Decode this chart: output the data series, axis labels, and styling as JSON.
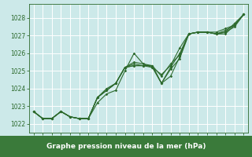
{
  "title": "Graphe pression niveau de la mer (hPa)",
  "bg_color": "#cce9e9",
  "grid_color": "#ffffff",
  "line_color": "#2d6a2d",
  "xlabel_bg": "#3a7a3a",
  "xlabel_fg": "#ffffff",
  "xlim": [
    -0.5,
    23.5
  ],
  "ylim": [
    1021.5,
    1028.8
  ],
  "yticks": [
    1022,
    1023,
    1024,
    1025,
    1026,
    1027,
    1028
  ],
  "xticks": [
    0,
    1,
    2,
    3,
    4,
    5,
    6,
    7,
    8,
    9,
    10,
    11,
    12,
    13,
    14,
    15,
    16,
    17,
    18,
    19,
    20,
    21,
    22,
    23
  ],
  "series": [
    [
      1022.7,
      1022.3,
      1022.3,
      1022.7,
      1022.4,
      1022.3,
      1022.3,
      1023.2,
      1023.7,
      1023.9,
      1025.0,
      1026.0,
      1025.4,
      1025.2,
      1024.3,
      1024.7,
      1025.8,
      1027.1,
      1027.2,
      1027.2,
      1027.1,
      1027.1,
      1027.6,
      1028.2
    ],
    [
      1022.7,
      1022.3,
      1022.3,
      1022.7,
      1022.4,
      1022.3,
      1022.3,
      1023.5,
      1024.0,
      1024.3,
      1025.2,
      1025.5,
      1025.4,
      1025.3,
      1024.7,
      1025.4,
      1025.9,
      1027.1,
      1027.2,
      1027.2,
      1027.1,
      1027.2,
      1027.5,
      1028.2
    ],
    [
      1022.7,
      1022.3,
      1022.3,
      1022.7,
      1022.4,
      1022.3,
      1022.3,
      1023.5,
      1023.9,
      1024.3,
      1025.2,
      1025.4,
      1025.3,
      1025.3,
      1024.3,
      1025.1,
      1025.7,
      1027.1,
      1027.2,
      1027.2,
      1027.1,
      1027.3,
      1027.6,
      1028.2
    ],
    [
      1022.7,
      1022.3,
      1022.3,
      1022.7,
      1022.4,
      1022.3,
      1022.3,
      1023.5,
      1023.9,
      1024.3,
      1025.2,
      1025.3,
      1025.3,
      1025.2,
      1024.8,
      1025.3,
      1026.3,
      1027.1,
      1027.2,
      1027.2,
      1027.2,
      1027.4,
      1027.6,
      1028.2
    ],
    [
      1022.7,
      1022.3,
      1022.3,
      1022.7,
      1022.4,
      1022.3,
      1022.3,
      1023.5,
      1023.9,
      1024.3,
      1025.2,
      1025.3,
      1025.3,
      1025.3,
      1024.3,
      1025.2,
      1026.0,
      1027.1,
      1027.2,
      1027.2,
      1027.1,
      1027.2,
      1027.7,
      1028.2
    ]
  ]
}
